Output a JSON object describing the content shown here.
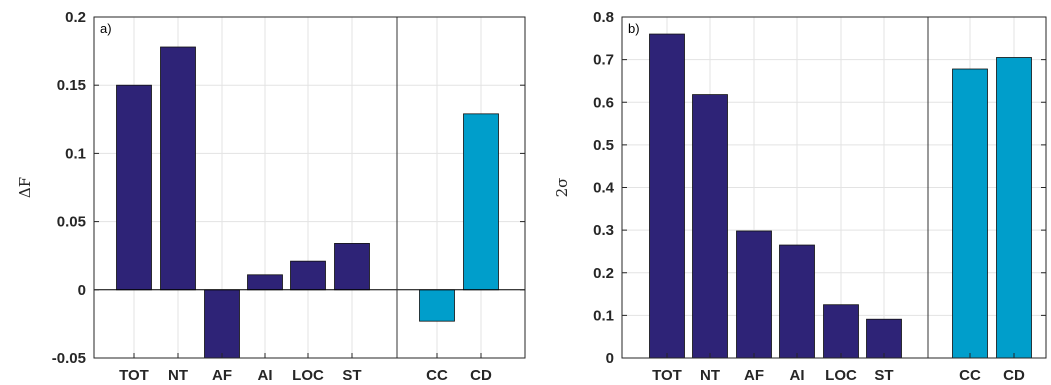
{
  "chart_data": [
    {
      "type": "bar",
      "panel_label": "a)",
      "ylabel": "ΔF",
      "ylim": [
        -0.05,
        0.2
      ],
      "yticks": [
        "-0.05",
        "0",
        "0.05",
        "0.1",
        "0.15",
        "0.2"
      ],
      "grid": true,
      "groups": [
        {
          "color": "#2e2377",
          "categories": [
            "TOT",
            "NT",
            "AF",
            "AI",
            "LOC",
            "ST"
          ],
          "values": [
            0.15,
            0.178,
            -0.05,
            0.011,
            0.021,
            0.034
          ]
        },
        {
          "color": "#009ecb",
          "categories": [
            "CC",
            "CD"
          ],
          "values": [
            -0.023,
            0.129
          ]
        }
      ]
    },
    {
      "type": "bar",
      "panel_label": "b)",
      "ylabel": "2σ",
      "ylim": [
        0,
        0.8
      ],
      "yticks": [
        "0",
        "0.1",
        "0.2",
        "0.3",
        "0.4",
        "0.5",
        "0.6",
        "0.7",
        "0.8"
      ],
      "grid": true,
      "groups": [
        {
          "color": "#2e2377",
          "categories": [
            "TOT",
            "NT",
            "AF",
            "AI",
            "LOC",
            "ST"
          ],
          "values": [
            0.76,
            0.618,
            0.298,
            0.265,
            0.125,
            0.091
          ]
        },
        {
          "color": "#009ecb",
          "categories": [
            "CC",
            "CD"
          ],
          "values": [
            0.678,
            0.705
          ]
        }
      ]
    }
  ]
}
